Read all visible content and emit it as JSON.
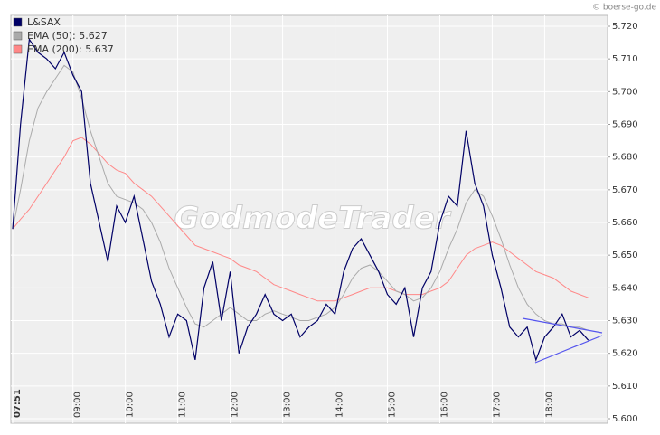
{
  "chart_data": {
    "type": "line",
    "watermark": "GodmodeTrader",
    "copyright": "© boerse-go.de",
    "x": [
      "07:51",
      "08:00",
      "08:10",
      "08:20",
      "08:30",
      "08:40",
      "08:50",
      "09:00",
      "09:10",
      "09:20",
      "09:30",
      "09:40",
      "09:50",
      "10:00",
      "10:10",
      "10:20",
      "10:30",
      "10:40",
      "10:50",
      "11:00",
      "11:10",
      "11:20",
      "11:30",
      "11:40",
      "11:50",
      "12:00",
      "12:10",
      "12:20",
      "12:30",
      "12:40",
      "12:50",
      "13:00",
      "13:10",
      "13:20",
      "13:30",
      "13:40",
      "13:50",
      "14:00",
      "14:10",
      "14:20",
      "14:30",
      "14:40",
      "14:50",
      "15:00",
      "15:10",
      "15:20",
      "15:30",
      "15:40",
      "15:50",
      "16:00",
      "16:10",
      "16:20",
      "16:30",
      "16:40",
      "16:50",
      "17:00",
      "17:10",
      "17:20",
      "17:30",
      "17:40",
      "17:50",
      "18:00",
      "18:10",
      "18:20",
      "18:30",
      "18:40",
      "18:50"
    ],
    "series": [
      {
        "name": "L&SAX",
        "color": "#000066",
        "values": [
          5.658,
          5.69,
          5.716,
          5.712,
          5.71,
          5.707,
          5.712,
          5.705,
          5.7,
          5.672,
          5.66,
          5.648,
          5.665,
          5.66,
          5.668,
          5.655,
          5.642,
          5.635,
          5.625,
          5.632,
          5.63,
          5.618,
          5.64,
          5.648,
          5.63,
          5.645,
          5.62,
          5.628,
          5.632,
          5.638,
          5.632,
          5.63,
          5.632,
          5.625,
          5.628,
          5.63,
          5.635,
          5.632,
          5.645,
          5.652,
          5.655,
          5.65,
          5.645,
          5.638,
          5.635,
          5.64,
          5.625,
          5.64,
          5.645,
          5.66,
          5.668,
          5.665,
          5.688,
          5.672,
          5.665,
          5.65,
          5.64,
          5.628,
          5.625,
          5.628,
          5.618,
          5.625,
          5.628,
          5.632,
          5.625,
          5.627,
          5.624
        ]
      },
      {
        "name": "EMA (50): 5.627",
        "color": "#aaaaaa",
        "values": [
          5.658,
          5.67,
          5.685,
          5.695,
          5.7,
          5.704,
          5.708,
          5.706,
          5.698,
          5.688,
          5.68,
          5.672,
          5.668,
          5.667,
          5.666,
          5.664,
          5.66,
          5.654,
          5.646,
          5.64,
          5.634,
          5.629,
          5.628,
          5.63,
          5.632,
          5.634,
          5.632,
          5.63,
          5.63,
          5.632,
          5.633,
          5.632,
          5.631,
          5.63,
          5.63,
          5.631,
          5.632,
          5.634,
          5.638,
          5.643,
          5.646,
          5.647,
          5.645,
          5.642,
          5.639,
          5.638,
          5.636,
          5.637,
          5.64,
          5.645,
          5.652,
          5.658,
          5.666,
          5.67,
          5.668,
          5.662,
          5.655,
          5.647,
          5.64,
          5.635,
          5.632,
          5.63,
          5.629,
          5.629,
          5.628,
          5.628,
          5.627
        ]
      },
      {
        "name": "EMA (200): 5.637",
        "color": "#ff8888",
        "values": [
          5.658,
          5.661,
          5.664,
          5.668,
          5.672,
          5.676,
          5.68,
          5.685,
          5.686,
          5.684,
          5.681,
          5.678,
          5.676,
          5.675,
          5.672,
          5.67,
          5.668,
          5.665,
          5.662,
          5.659,
          5.656,
          5.653,
          5.652,
          5.651,
          5.65,
          5.649,
          5.647,
          5.646,
          5.645,
          5.643,
          5.641,
          5.64,
          5.639,
          5.638,
          5.637,
          5.636,
          5.636,
          5.636,
          5.637,
          5.638,
          5.639,
          5.64,
          5.64,
          5.64,
          5.639,
          5.638,
          5.638,
          5.638,
          5.639,
          5.64,
          5.642,
          5.646,
          5.65,
          5.652,
          5.653,
          5.654,
          5.653,
          5.651,
          5.649,
          5.647,
          5.645,
          5.644,
          5.643,
          5.641,
          5.639,
          5.638,
          5.637
        ]
      }
    ],
    "xlim": [
      "07:51",
      "19:12"
    ],
    "xticks": [
      "07:51",
      "09:00",
      "10:00",
      "11:00",
      "12:00",
      "13:00",
      "14:00",
      "15:00",
      "16:00",
      "17:00",
      "18:00"
    ],
    "ylim": [
      5.6,
      5.72
    ],
    "yticks": [
      {
        "value": 5.6,
        "label": "5.600"
      },
      {
        "value": 5.61,
        "label": "5.610"
      },
      {
        "value": 5.62,
        "label": "5.620"
      },
      {
        "value": 5.63,
        "label": "5.630"
      },
      {
        "value": 5.64,
        "label": "5.640"
      },
      {
        "value": 5.65,
        "label": "5.650"
      },
      {
        "value": 5.66,
        "label": "5.660"
      },
      {
        "value": 5.67,
        "label": "5.670"
      },
      {
        "value": 5.68,
        "label": "5.680"
      },
      {
        "value": 5.69,
        "label": "5.690"
      },
      {
        "value": 5.7,
        "label": "5.700"
      },
      {
        "value": 5.71,
        "label": "5.710"
      },
      {
        "value": 5.72,
        "label": "5.720"
      }
    ],
    "grid": true,
    "legend": "top-left"
  }
}
